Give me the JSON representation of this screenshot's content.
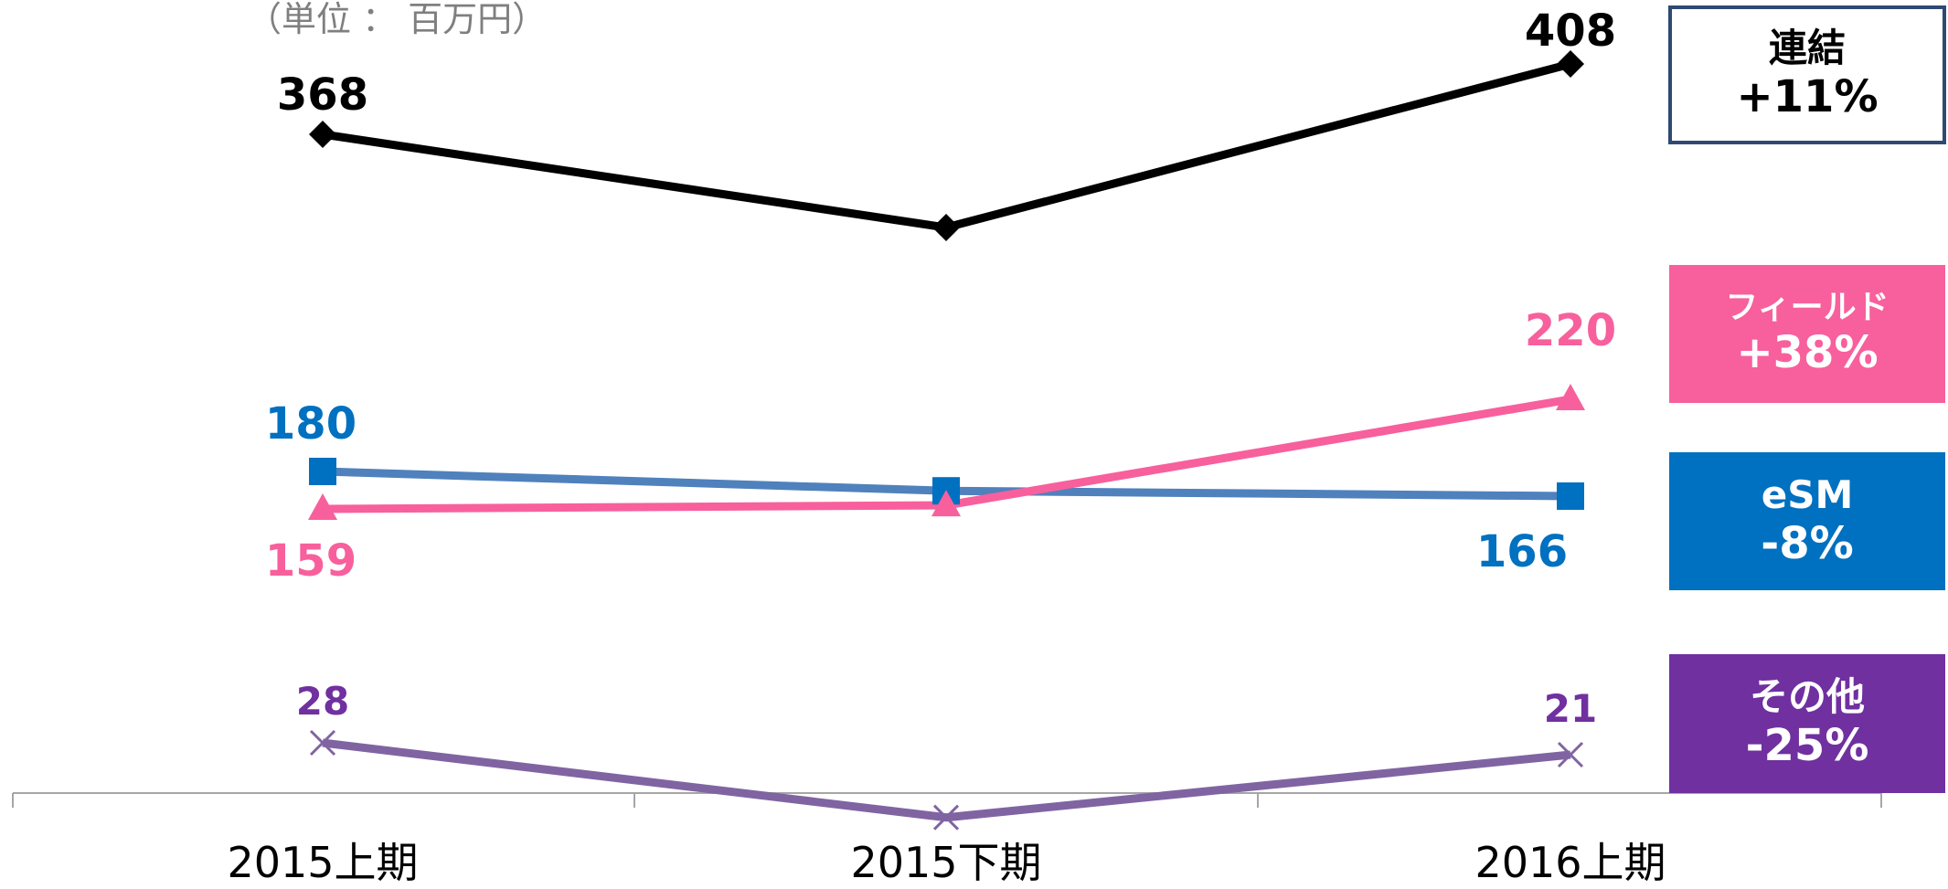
{
  "unit_label": "（単位 ： 百万円）",
  "chart_data": {
    "type": "line",
    "categories": [
      "2015上期",
      "2015下期",
      "2016上期"
    ],
    "series": [
      {
        "key": "renketsu",
        "values": [
          368,
          315,
          408
        ],
        "labels": [
          "368",
          null,
          "408"
        ],
        "color": "#000000",
        "marker": "diamond"
      },
      {
        "key": "esm",
        "values": [
          180,
          169,
          166
        ],
        "labels": [
          "180",
          null,
          "166"
        ],
        "color": "#4f81bd",
        "marker_color": "#0070c0",
        "label_color": "#0070c0",
        "marker": "square"
      },
      {
        "key": "field",
        "values": [
          159,
          161,
          220
        ],
        "labels": [
          "159",
          null,
          "220"
        ],
        "color": "#f7609c",
        "marker": "triangle"
      },
      {
        "key": "other",
        "values": [
          28,
          -16,
          21
        ],
        "labels": [
          "28",
          null,
          "21"
        ],
        "color": "#8064a2",
        "label_color": "#7030a0",
        "marker": "x"
      }
    ],
    "axis_line_color": "#a6a6a6",
    "grid": false
  },
  "boxes": {
    "renketsu": {
      "name": "連結",
      "pct": "+11%"
    },
    "field": {
      "name": "フィールド",
      "pct": "+38%"
    },
    "esm": {
      "name": "eSM",
      "pct": "-8%"
    },
    "other": {
      "name": "その他",
      "pct": "-25%"
    }
  }
}
